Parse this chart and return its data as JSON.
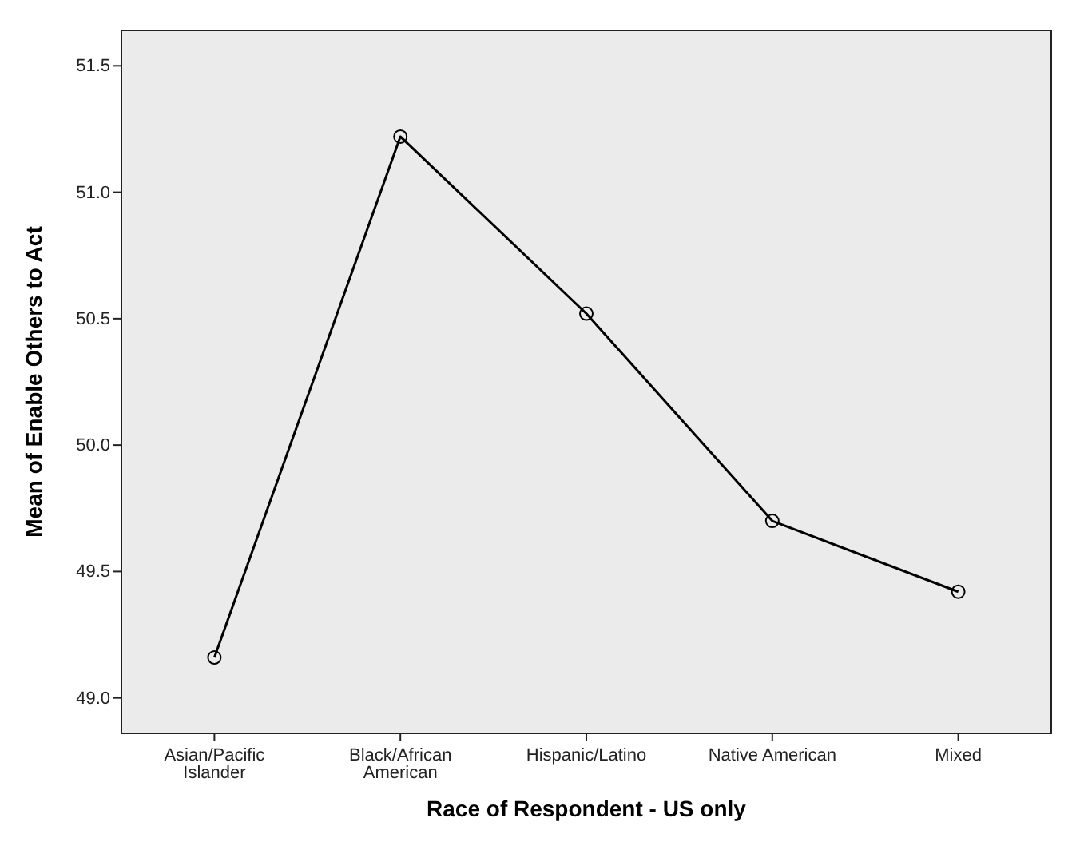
{
  "chart_data": {
    "type": "line",
    "xlabel": "Race of Respondent - US only",
    "ylabel": "Mean of Enable Others to Act",
    "categories": [
      "Asian/Pacific Islander",
      "Black/African American",
      "Hispanic/Latino",
      "Native American",
      "Mixed"
    ],
    "series": [
      {
        "color": "#000000",
        "values": [
          49.16,
          51.22,
          50.52,
          49.7,
          49.42
        ]
      }
    ],
    "ylim": [
      48.86,
      51.64
    ],
    "yticks": [
      {
        "value": 49,
        "label": "49.0"
      },
      {
        "value": 49.5,
        "label": "49.5"
      },
      {
        "value": 50,
        "label": "50.0"
      },
      {
        "value": 50.5,
        "label": "50.5"
      },
      {
        "value": 51,
        "label": "51.0"
      },
      {
        "value": 51.5,
        "label": "51.5"
      }
    ],
    "marker": "circle",
    "line_style": "solid"
  }
}
